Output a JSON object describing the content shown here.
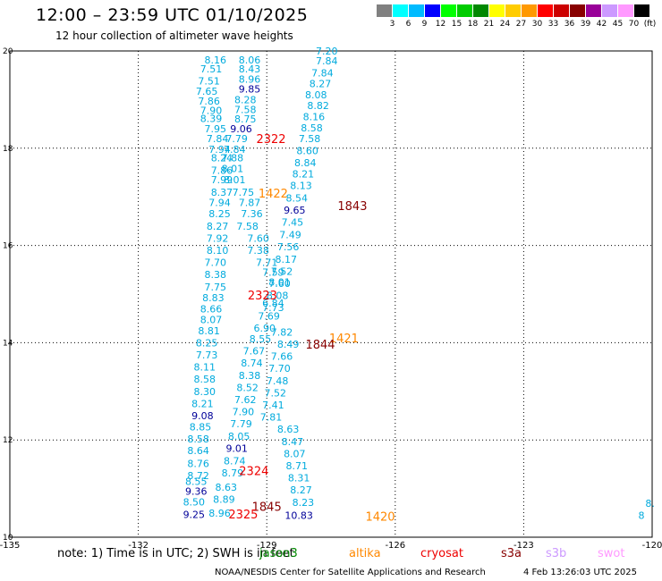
{
  "title": "12:00 – 23:59 UTC 01/10/2025",
  "subtitle": "12 hour collection of altimeter wave heights",
  "legend": {
    "labels": [
      "3",
      "6",
      "9",
      "12",
      "15",
      "18",
      "21",
      "24",
      "27",
      "30",
      "33",
      "36",
      "39",
      "42",
      "45",
      "70",
      "(ft)"
    ],
    "colors": [
      "#808080",
      "#00ffff",
      "#00bbff",
      "#0000ff",
      "#00ff00",
      "#00cc00",
      "#008800",
      "#ffff00",
      "#ffcc00",
      "#ff9900",
      "#ff0000",
      "#cc0000",
      "#880000",
      "#990099",
      "#cc99ff",
      "#ff99ff",
      "#000000"
    ]
  },
  "map": {
    "x_ticks": [
      "-135",
      "-132",
      "-129",
      "-126",
      "-123",
      "-120"
    ],
    "y_ticks": [
      "10",
      "12",
      "14",
      "16",
      "18",
      "20"
    ],
    "xlim": [
      -135,
      -120
    ],
    "ylim": [
      10,
      20
    ]
  },
  "colors": {
    "cyan": "#00aadd",
    "navy": "#000099",
    "red": "#ee0000",
    "orange": "#ff8800",
    "darkred": "#880000",
    "green": "#008800"
  },
  "wave_heights": [
    {
      "lon": -130.2,
      "lat": 19.82,
      "v": "8.16",
      "c": "cyan"
    },
    {
      "lon": -130.3,
      "lat": 19.63,
      "v": "7.51",
      "c": "cyan"
    },
    {
      "lon": -130.35,
      "lat": 19.38,
      "v": "7.51",
      "c": "cyan"
    },
    {
      "lon": -130.4,
      "lat": 19.17,
      "v": "7.65",
      "c": "cyan"
    },
    {
      "lon": -130.35,
      "lat": 18.97,
      "v": "7.86",
      "c": "cyan"
    },
    {
      "lon": -130.3,
      "lat": 18.78,
      "v": "7.90",
      "c": "cyan"
    },
    {
      "lon": -130.3,
      "lat": 18.61,
      "v": "8.39",
      "c": "cyan"
    },
    {
      "lon": -130.2,
      "lat": 18.4,
      "v": "7.95",
      "c": "cyan"
    },
    {
      "lon": -130.15,
      "lat": 18.2,
      "v": "7.84",
      "c": "cyan"
    },
    {
      "lon": -130.1,
      "lat": 17.98,
      "v": "7.94",
      "c": "cyan"
    },
    {
      "lon": -130.05,
      "lat": 17.8,
      "v": "8.24",
      "c": "cyan"
    },
    {
      "lon": -130.05,
      "lat": 17.55,
      "v": "7.86",
      "c": "cyan"
    },
    {
      "lon": -130.05,
      "lat": 17.35,
      "v": "7.99",
      "c": "cyan"
    },
    {
      "lon": -130.05,
      "lat": 17.1,
      "v": "8.37",
      "c": "cyan"
    },
    {
      "lon": -130.1,
      "lat": 16.88,
      "v": "7.94",
      "c": "cyan"
    },
    {
      "lon": -130.1,
      "lat": 16.65,
      "v": "8.25",
      "c": "cyan"
    },
    {
      "lon": -130.15,
      "lat": 16.4,
      "v": "8.27",
      "c": "cyan"
    },
    {
      "lon": -130.15,
      "lat": 16.15,
      "v": "7.92",
      "c": "cyan"
    },
    {
      "lon": -130.15,
      "lat": 15.9,
      "v": "8.10",
      "c": "cyan"
    },
    {
      "lon": -130.2,
      "lat": 15.65,
      "v": "7.70",
      "c": "cyan"
    },
    {
      "lon": -130.2,
      "lat": 15.4,
      "v": "8.38",
      "c": "cyan"
    },
    {
      "lon": -130.2,
      "lat": 15.15,
      "v": "7.75",
      "c": "cyan"
    },
    {
      "lon": -130.25,
      "lat": 14.93,
      "v": "8.83",
      "c": "cyan"
    },
    {
      "lon": -130.3,
      "lat": 14.7,
      "v": "8.66",
      "c": "cyan"
    },
    {
      "lon": -130.3,
      "lat": 14.48,
      "v": "8.07",
      "c": "cyan"
    },
    {
      "lon": -130.35,
      "lat": 14.25,
      "v": "8.81",
      "c": "cyan"
    },
    {
      "lon": -130.4,
      "lat": 14.0,
      "v": "8.25",
      "c": "cyan"
    },
    {
      "lon": -130.4,
      "lat": 13.75,
      "v": "7.73",
      "c": "cyan"
    },
    {
      "lon": -130.45,
      "lat": 13.5,
      "v": "8.11",
      "c": "cyan"
    },
    {
      "lon": -130.45,
      "lat": 13.25,
      "v": "8.58",
      "c": "cyan"
    },
    {
      "lon": -130.45,
      "lat": 13.0,
      "v": "8.30",
      "c": "cyan"
    },
    {
      "lon": -130.5,
      "lat": 12.75,
      "v": "8.21",
      "c": "cyan"
    },
    {
      "lon": -130.5,
      "lat": 12.5,
      "v": "9.08",
      "c": "navy"
    },
    {
      "lon": -130.55,
      "lat": 12.27,
      "v": "8.85",
      "c": "cyan"
    },
    {
      "lon": -130.6,
      "lat": 12.02,
      "v": "8.58",
      "c": "cyan"
    },
    {
      "lon": -130.6,
      "lat": 11.78,
      "v": "8.64",
      "c": "cyan"
    },
    {
      "lon": -130.6,
      "lat": 11.52,
      "v": "8.76",
      "c": "cyan"
    },
    {
      "lon": -130.6,
      "lat": 11.27,
      "v": "8.72",
      "c": "cyan"
    },
    {
      "lon": -130.65,
      "lat": 11.15,
      "v": "8.55",
      "c": "cyan"
    },
    {
      "lon": -130.65,
      "lat": 10.95,
      "v": "9.36",
      "c": "navy"
    },
    {
      "lon": -130.7,
      "lat": 10.73,
      "v": "8.50",
      "c": "cyan"
    },
    {
      "lon": -130.7,
      "lat": 10.47,
      "v": "9.25",
      "c": "navy"
    },
    {
      "lon": -130.1,
      "lat": 10.5,
      "v": "8.96",
      "c": "cyan"
    },
    {
      "lon": -130.0,
      "lat": 10.78,
      "v": "8.89",
      "c": "cyan"
    },
    {
      "lon": -129.95,
      "lat": 11.03,
      "v": "8.63",
      "c": "cyan"
    },
    {
      "lon": -129.8,
      "lat": 11.32,
      "v": "8.79",
      "c": "cyan"
    },
    {
      "lon": -129.4,
      "lat": 19.82,
      "v": "8.06",
      "c": "cyan"
    },
    {
      "lon": -129.4,
      "lat": 19.63,
      "v": "8.43",
      "c": "cyan"
    },
    {
      "lon": -129.4,
      "lat": 19.42,
      "v": "8.96",
      "c": "cyan"
    },
    {
      "lon": -129.4,
      "lat": 19.22,
      "v": "9.85",
      "c": "navy"
    },
    {
      "lon": -129.5,
      "lat": 19.0,
      "v": "8.28",
      "c": "cyan"
    },
    {
      "lon": -129.5,
      "lat": 18.8,
      "v": "7.58",
      "c": "cyan"
    },
    {
      "lon": -129.5,
      "lat": 18.6,
      "v": "8.75",
      "c": "cyan"
    },
    {
      "lon": -129.6,
      "lat": 18.4,
      "v": "9.06",
      "c": "navy"
    },
    {
      "lon": -129.7,
      "lat": 18.2,
      "v": "7.79",
      "c": "cyan"
    },
    {
      "lon": -129.75,
      "lat": 17.98,
      "v": "7.84",
      "c": "cyan"
    },
    {
      "lon": -129.8,
      "lat": 17.8,
      "v": "7.88",
      "c": "cyan"
    },
    {
      "lon": -129.8,
      "lat": 17.58,
      "v": "8.01",
      "c": "cyan"
    },
    {
      "lon": -129.75,
      "lat": 17.35,
      "v": "8.01",
      "c": "cyan"
    },
    {
      "lon": -129.55,
      "lat": 17.1,
      "v": "7.75",
      "c": "cyan"
    },
    {
      "lon": -129.4,
      "lat": 16.88,
      "v": "7.87",
      "c": "cyan"
    },
    {
      "lon": -129.35,
      "lat": 16.65,
      "v": "7.36",
      "c": "cyan"
    },
    {
      "lon": -129.45,
      "lat": 16.4,
      "v": "7.58",
      "c": "cyan"
    },
    {
      "lon": -129.2,
      "lat": 16.15,
      "v": "7.60",
      "c": "cyan"
    },
    {
      "lon": -129.2,
      "lat": 15.9,
      "v": "7.38",
      "c": "cyan"
    },
    {
      "lon": -129.0,
      "lat": 15.65,
      "v": "7.71",
      "c": "cyan"
    },
    {
      "lon": -128.85,
      "lat": 15.45,
      "v": "7.59",
      "c": "cyan"
    },
    {
      "lon": -128.7,
      "lat": 15.25,
      "v": "8.01",
      "c": "cyan"
    },
    {
      "lon": -128.85,
      "lat": 14.82,
      "v": "6.84",
      "c": "cyan"
    },
    {
      "lon": -128.95,
      "lat": 14.55,
      "v": "7.69",
      "c": "cyan"
    },
    {
      "lon": -129.05,
      "lat": 14.3,
      "v": "6.90",
      "c": "cyan"
    },
    {
      "lon": -129.15,
      "lat": 14.08,
      "v": "8.55",
      "c": "cyan"
    },
    {
      "lon": -129.3,
      "lat": 13.83,
      "v": "7.67",
      "c": "cyan"
    },
    {
      "lon": -129.35,
      "lat": 13.58,
      "v": "8.74",
      "c": "cyan"
    },
    {
      "lon": -129.4,
      "lat": 13.33,
      "v": "8.38",
      "c": "cyan"
    },
    {
      "lon": -129.45,
      "lat": 13.08,
      "v": "8.52",
      "c": "cyan"
    },
    {
      "lon": -129.5,
      "lat": 12.83,
      "v": "7.62",
      "c": "cyan"
    },
    {
      "lon": -129.55,
      "lat": 12.58,
      "v": "7.90",
      "c": "cyan"
    },
    {
      "lon": -129.6,
      "lat": 12.33,
      "v": "7.79",
      "c": "cyan"
    },
    {
      "lon": -129.65,
      "lat": 12.08,
      "v": "8.05",
      "c": "cyan"
    },
    {
      "lon": -129.7,
      "lat": 11.83,
      "v": "9.01",
      "c": "navy"
    },
    {
      "lon": -129.75,
      "lat": 11.57,
      "v": "8.74",
      "c": "cyan"
    },
    {
      "lon": -127.6,
      "lat": 20.0,
      "v": "7.20",
      "c": "cyan"
    },
    {
      "lon": -127.6,
      "lat": 19.8,
      "v": "7.84",
      "c": "cyan"
    },
    {
      "lon": -127.7,
      "lat": 19.55,
      "v": "7.84",
      "c": "cyan"
    },
    {
      "lon": -127.75,
      "lat": 19.33,
      "v": "8.27",
      "c": "cyan"
    },
    {
      "lon": -127.85,
      "lat": 19.1,
      "v": "8.08",
      "c": "cyan"
    },
    {
      "lon": -127.8,
      "lat": 18.88,
      "v": "8.82",
      "c": "cyan"
    },
    {
      "lon": -127.9,
      "lat": 18.65,
      "v": "8.16",
      "c": "cyan"
    },
    {
      "lon": -127.95,
      "lat": 18.42,
      "v": "8.58",
      "c": "cyan"
    },
    {
      "lon": -128.0,
      "lat": 18.2,
      "v": "7.58",
      "c": "cyan"
    },
    {
      "lon": -128.05,
      "lat": 17.95,
      "v": "8.60",
      "c": "cyan"
    },
    {
      "lon": -128.1,
      "lat": 17.7,
      "v": "8.84",
      "c": "cyan"
    },
    {
      "lon": -128.15,
      "lat": 17.47,
      "v": "8.21",
      "c": "cyan"
    },
    {
      "lon": -128.2,
      "lat": 17.23,
      "v": "8.13",
      "c": "cyan"
    },
    {
      "lon": -128.3,
      "lat": 16.98,
      "v": "8.54",
      "c": "cyan"
    },
    {
      "lon": -128.35,
      "lat": 16.73,
      "v": "9.65",
      "c": "navy"
    },
    {
      "lon": -128.4,
      "lat": 16.48,
      "v": "7.45",
      "c": "cyan"
    },
    {
      "lon": -128.45,
      "lat": 16.22,
      "v": "7.49",
      "c": "cyan"
    },
    {
      "lon": -128.5,
      "lat": 15.97,
      "v": "7.56",
      "c": "cyan"
    },
    {
      "lon": -128.55,
      "lat": 15.72,
      "v": "8.17",
      "c": "cyan"
    },
    {
      "lon": -128.65,
      "lat": 15.47,
      "v": "7.52",
      "c": "cyan"
    },
    {
      "lon": -128.7,
      "lat": 15.22,
      "v": "7.60",
      "c": "cyan"
    },
    {
      "lon": -128.75,
      "lat": 14.97,
      "v": "8.08",
      "c": "cyan"
    },
    {
      "lon": -128.85,
      "lat": 14.72,
      "v": "7.73",
      "c": "cyan"
    },
    {
      "lon": -128.65,
      "lat": 14.22,
      "v": "7.82",
      "c": "cyan"
    },
    {
      "lon": -128.5,
      "lat": 13.97,
      "v": "8.49",
      "c": "cyan"
    },
    {
      "lon": -128.65,
      "lat": 13.72,
      "v": "7.66",
      "c": "cyan"
    },
    {
      "lon": -128.7,
      "lat": 13.47,
      "v": "7.70",
      "c": "cyan"
    },
    {
      "lon": -128.75,
      "lat": 13.22,
      "v": "7.48",
      "c": "cyan"
    },
    {
      "lon": -128.8,
      "lat": 12.97,
      "v": "7.52",
      "c": "cyan"
    },
    {
      "lon": -128.85,
      "lat": 12.72,
      "v": "7.41",
      "c": "cyan"
    },
    {
      "lon": -128.9,
      "lat": 12.47,
      "v": "7.81",
      "c": "cyan"
    },
    {
      "lon": -128.5,
      "lat": 12.22,
      "v": "8.63",
      "c": "cyan"
    },
    {
      "lon": -128.4,
      "lat": 11.97,
      "v": "8.47",
      "c": "cyan"
    },
    {
      "lon": -128.35,
      "lat": 11.72,
      "v": "8.07",
      "c": "cyan"
    },
    {
      "lon": -128.3,
      "lat": 11.47,
      "v": "8.71",
      "c": "cyan"
    },
    {
      "lon": -128.25,
      "lat": 11.22,
      "v": "8.31",
      "c": "cyan"
    },
    {
      "lon": -128.2,
      "lat": 10.97,
      "v": "8.27",
      "c": "cyan"
    },
    {
      "lon": -128.15,
      "lat": 10.72,
      "v": "8.23",
      "c": "cyan"
    },
    {
      "lon": -128.25,
      "lat": 10.45,
      "v": "10.83",
      "c": "navy"
    },
    {
      "lon": -120.05,
      "lat": 10.7,
      "v": "8.",
      "c": "cyan"
    },
    {
      "lon": -120.25,
      "lat": 10.45,
      "v": "8",
      "c": "cyan"
    }
  ],
  "pass_labels": [
    {
      "lon": -128.9,
      "lat": 18.2,
      "v": "2322",
      "c": "red"
    },
    {
      "lon": -128.85,
      "lat": 17.08,
      "v": "1422",
      "c": "orange"
    },
    {
      "lon": -127.0,
      "lat": 16.82,
      "v": "1843",
      "c": "darkred"
    },
    {
      "lon": -129.1,
      "lat": 14.98,
      "v": "2323",
      "c": "red"
    },
    {
      "lon": -127.2,
      "lat": 14.1,
      "v": "1421",
      "c": "orange"
    },
    {
      "lon": -127.75,
      "lat": 13.97,
      "v": "1844",
      "c": "darkred"
    },
    {
      "lon": -129.3,
      "lat": 11.37,
      "v": "2324",
      "c": "red"
    },
    {
      "lon": -129.0,
      "lat": 10.63,
      "v": "1845",
      "c": "darkred"
    },
    {
      "lon": -129.55,
      "lat": 10.48,
      "v": "2325",
      "c": "red"
    },
    {
      "lon": -126.35,
      "lat": 10.43,
      "v": "1420",
      "c": "orange"
    }
  ],
  "footer": {
    "note": "note: 1) Time is in UTC; 2) SWH is in feet",
    "satellites": [
      {
        "name": "jason3",
        "color": "#008800"
      },
      {
        "name": "altika",
        "color": "#ff8800"
      },
      {
        "name": "cryosat",
        "color": "#ee0000"
      },
      {
        "name": "s3a",
        "color": "#880000"
      },
      {
        "name": "s3b",
        "color": "#cc99ff"
      },
      {
        "name": "swot",
        "color": "#ff99ff"
      }
    ],
    "credit": "NOAA/NESDIS Center for Satellite Applications and Research",
    "timestamp": "4 Feb 13:26:03 UTC 2025"
  }
}
